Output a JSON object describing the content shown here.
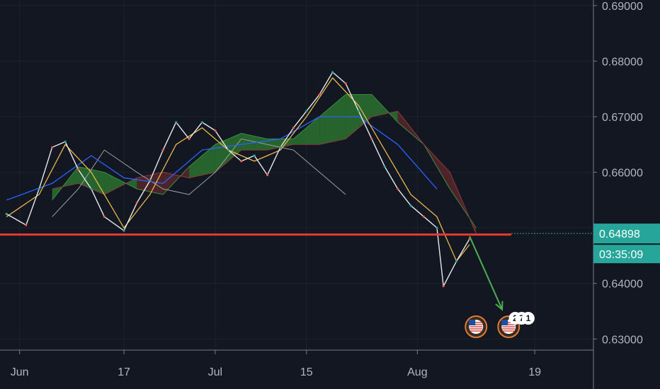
{
  "chart_data": {
    "type": "line",
    "instrument_hint": "price chart with Ichimoku cloud",
    "x_tick_labels": [
      "Jun",
      "17",
      "Jul",
      "15",
      "Aug",
      "19"
    ],
    "y_tick_labels": [
      "0.69000",
      "0.68000",
      "0.67000",
      "0.66000",
      "0.65000",
      "0.64000",
      "0.63000"
    ],
    "ylim": [
      0.628,
      0.691
    ],
    "grid": true,
    "current_price": {
      "value": "0.64898",
      "countdown": "03:35:09"
    },
    "support_level": 0.6488,
    "series": [
      {
        "key": "price",
        "x": [
          "2019-05-30",
          "2019-06-02",
          "2019-06-04",
          "2019-06-06",
          "2019-06-08",
          "2019-06-10",
          "2019-06-12",
          "2019-06-14",
          "2019-06-17",
          "2019-06-19",
          "2019-06-21",
          "2019-06-23",
          "2019-06-25",
          "2019-06-27",
          "2019-06-29",
          "2019-07-01",
          "2019-07-03",
          "2019-07-05",
          "2019-07-07",
          "2019-07-09",
          "2019-07-11",
          "2019-07-13",
          "2019-07-15",
          "2019-07-17",
          "2019-07-19",
          "2019-07-21",
          "2019-07-23",
          "2019-07-25",
          "2019-07-27",
          "2019-07-29",
          "2019-07-31",
          "2019-08-02",
          "2019-08-04",
          "2019-08-05",
          "2019-08-07",
          "2019-08-09"
        ],
        "values": [
          0.6525,
          0.6505,
          0.657,
          0.6645,
          0.6655,
          0.6605,
          0.657,
          0.652,
          0.6495,
          0.6545,
          0.6585,
          0.664,
          0.669,
          0.666,
          0.669,
          0.6675,
          0.664,
          0.662,
          0.663,
          0.6595,
          0.6645,
          0.668,
          0.671,
          0.674,
          0.678,
          0.676,
          0.671,
          0.666,
          0.661,
          0.657,
          0.654,
          0.652,
          0.65,
          0.6395,
          0.644,
          0.648
        ]
      },
      {
        "key": "tenkan",
        "x": [
          "2019-05-30",
          "2019-06-04",
          "2019-06-08",
          "2019-06-12",
          "2019-06-17",
          "2019-06-21",
          "2019-06-25",
          "2019-06-29",
          "2019-07-03",
          "2019-07-07",
          "2019-07-11",
          "2019-07-15",
          "2019-07-19",
          "2019-07-23",
          "2019-07-27",
          "2019-07-31",
          "2019-08-04",
          "2019-08-07",
          "2019-08-09"
        ],
        "values": [
          0.652,
          0.656,
          0.665,
          0.66,
          0.65,
          0.656,
          0.665,
          0.668,
          0.664,
          0.662,
          0.664,
          0.67,
          0.677,
          0.672,
          0.664,
          0.656,
          0.652,
          0.644,
          0.647
        ]
      },
      {
        "key": "kijun",
        "x": [
          "2019-05-30",
          "2019-06-06",
          "2019-06-12",
          "2019-06-17",
          "2019-06-23",
          "2019-06-29",
          "2019-07-05",
          "2019-07-11",
          "2019-07-17",
          "2019-07-23",
          "2019-07-29",
          "2019-08-04"
        ],
        "values": [
          0.655,
          0.658,
          0.663,
          0.659,
          0.658,
          0.664,
          0.665,
          0.666,
          0.67,
          0.67,
          0.665,
          0.657
        ]
      },
      {
        "key": "lagging",
        "x": [
          "2019-06-06",
          "2019-06-10",
          "2019-06-14",
          "2019-06-19",
          "2019-06-23",
          "2019-06-27",
          "2019-07-01",
          "2019-07-05",
          "2019-07-09",
          "2019-07-13",
          "2019-07-17",
          "2019-07-21"
        ],
        "values": [
          0.652,
          0.657,
          0.664,
          0.66,
          0.657,
          0.656,
          0.66,
          0.666,
          0.665,
          0.664,
          0.66,
          0.656
        ]
      }
    ],
    "cloud": {
      "x": [
        "2019-06-06",
        "2019-06-10",
        "2019-06-14",
        "2019-06-19",
        "2019-06-23",
        "2019-06-27",
        "2019-07-01",
        "2019-07-05",
        "2019-07-09",
        "2019-07-13",
        "2019-07-17",
        "2019-07-21",
        "2019-07-25",
        "2019-07-29",
        "2019-08-02",
        "2019-08-06",
        "2019-08-10"
      ],
      "span_a": [
        0.655,
        0.661,
        0.66,
        0.657,
        0.656,
        0.661,
        0.665,
        0.667,
        0.666,
        0.666,
        0.67,
        0.674,
        0.674,
        0.669,
        0.665,
        0.657,
        0.65
      ],
      "span_b": [
        0.657,
        0.658,
        0.656,
        0.659,
        0.66,
        0.659,
        0.66,
        0.664,
        0.664,
        0.665,
        0.665,
        0.666,
        0.67,
        0.671,
        0.665,
        0.66,
        0.649
      ],
      "bull_color": "#2e7d32",
      "bear_color": "#7a2e2e"
    },
    "annotation_arrow": {
      "from": {
        "x": "2019-08-09",
        "y": 0.6485
      },
      "to": {
        "x": "2019-08-14",
        "y": 0.6353
      },
      "color": "#4caf50"
    },
    "event_badges": [
      {
        "x": "2019-08-10",
        "label": "",
        "icon": "us-flag-icon"
      },
      {
        "x": "2019-08-15",
        "label": "",
        "icon": "us-flag-icon"
      },
      {
        "x": "2019-08-16",
        "label": "2"
      },
      {
        "x": "2019-08-17",
        "label": "7"
      },
      {
        "x": "2019-08-18",
        "label": "1"
      }
    ],
    "colors": {
      "background": "#131722",
      "grid": "#1e222d",
      "price": "#e8e8e8",
      "tenkan": "#e8b84c",
      "kijun": "#2962ff",
      "lagging": "#9e9e9e",
      "support": "#e53935",
      "current_price_bg": "#26a69a",
      "axis_text": "#b2b5be"
    }
  }
}
